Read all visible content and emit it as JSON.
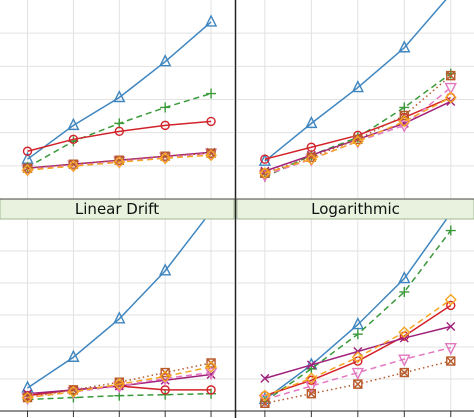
{
  "chart_data": [
    {
      "type": "line",
      "title": "",
      "x": [
        1,
        2,
        3,
        4,
        5
      ],
      "xlim": [
        0.4,
        5.5
      ],
      "ylim": [
        0,
        10
      ],
      "grid": true,
      "series": [
        {
          "marker": "triangle",
          "color": "#3f86c0",
          "dash": "solid",
          "values": [
            2.0,
            3.7,
            5.1,
            6.9,
            8.9
          ]
        },
        {
          "marker": "plus",
          "color": "#3a9a3a",
          "dash": "dashed",
          "values": [
            1.6,
            2.9,
            3.8,
            4.6,
            5.3
          ]
        },
        {
          "marker": "circle",
          "color": "#d2232a",
          "dash": "solid",
          "values": [
            2.4,
            3.0,
            3.4,
            3.7,
            3.9
          ]
        },
        {
          "marker": "xmark",
          "color": "#a0207a",
          "dash": "solid",
          "values": [
            1.55,
            1.75,
            1.95,
            2.15,
            2.35
          ]
        },
        {
          "marker": "tridown",
          "color": "#e377c2",
          "dash": "dashed",
          "values": [
            1.5,
            1.7,
            1.9,
            2.1,
            2.3
          ]
        },
        {
          "marker": "boxx",
          "color": "#b85a2a",
          "dash": "dotted",
          "values": [
            1.55,
            1.75,
            1.95,
            2.15,
            2.3
          ]
        },
        {
          "marker": "diamond",
          "color": "#f5a623",
          "dash": "dashed",
          "values": [
            1.45,
            1.65,
            1.85,
            2.05,
            2.2
          ]
        }
      ]
    },
    {
      "type": "line",
      "title": "",
      "x": [
        1,
        2,
        3,
        4,
        5
      ],
      "xlim": [
        0.4,
        5.5
      ],
      "ylim": [
        0,
        10
      ],
      "grid": true,
      "series": [
        {
          "marker": "triangle",
          "color": "#3f86c0",
          "dash": "solid",
          "values": [
            1.9,
            3.8,
            5.6,
            7.6,
            10.3
          ]
        },
        {
          "marker": "plus",
          "color": "#3a9a3a",
          "dash": "dashed",
          "values": [
            1.1,
            2.2,
            3.1,
            4.6,
            6.3
          ]
        },
        {
          "marker": "circle",
          "color": "#d2232a",
          "dash": "solid",
          "values": [
            2.0,
            2.6,
            3.2,
            4.1,
            5.1
          ]
        },
        {
          "marker": "xmark",
          "color": "#a0207a",
          "dash": "solid",
          "values": [
            1.4,
            2.2,
            3.0,
            3.8,
            4.9
          ]
        },
        {
          "marker": "tridown",
          "color": "#e377c2",
          "dash": "dashed",
          "values": [
            1.2,
            2.0,
            2.9,
            3.7,
            5.6
          ]
        },
        {
          "marker": "boxx",
          "color": "#b85a2a",
          "dash": "dotted",
          "values": [
            1.3,
            2.1,
            3.0,
            4.2,
            6.2
          ]
        },
        {
          "marker": "diamond",
          "color": "#f5a623",
          "dash": "dashed",
          "values": [
            1.3,
            2.0,
            2.9,
            3.9,
            5.1
          ]
        }
      ]
    },
    {
      "type": "line",
      "title": "Linear Drift",
      "x": [
        1,
        2,
        3,
        4,
        5
      ],
      "xlim": [
        0.4,
        5.5
      ],
      "ylim": [
        0,
        10
      ],
      "grid": true,
      "series": [
        {
          "marker": "triangle",
          "color": "#3f86c0",
          "dash": "solid",
          "values": [
            1.2,
            2.8,
            4.8,
            7.3,
            10.4
          ]
        },
        {
          "marker": "plus",
          "color": "#3a9a3a",
          "dash": "dashed",
          "values": [
            0.6,
            0.7,
            0.8,
            0.85,
            0.9
          ]
        },
        {
          "marker": "circle",
          "color": "#d2232a",
          "dash": "solid",
          "values": [
            0.8,
            1.1,
            1.3,
            1.1,
            1.1
          ]
        },
        {
          "marker": "xmark",
          "color": "#a0207a",
          "dash": "solid",
          "values": [
            0.9,
            1.1,
            1.3,
            1.6,
            1.9
          ]
        },
        {
          "marker": "tridown",
          "color": "#e377c2",
          "dash": "dashed",
          "values": [
            0.7,
            1.0,
            1.3,
            1.7,
            2.0
          ]
        },
        {
          "marker": "boxx",
          "color": "#b85a2a",
          "dash": "dotted",
          "values": [
            0.7,
            1.1,
            1.5,
            2.0,
            2.5
          ]
        },
        {
          "marker": "diamond",
          "color": "#f5a623",
          "dash": "dashed",
          "values": [
            0.7,
            1.0,
            1.4,
            1.8,
            2.3
          ]
        }
      ]
    },
    {
      "type": "line",
      "title": "Logarithmic",
      "x": [
        1,
        2,
        3,
        4,
        5
      ],
      "xlim": [
        0.4,
        5.5
      ],
      "ylim": [
        0,
        10
      ],
      "grid": true,
      "series": [
        {
          "marker": "triangle",
          "color": "#3f86c0",
          "dash": "solid",
          "values": [
            0.6,
            2.4,
            4.5,
            6.9,
            10.3
          ]
        },
        {
          "marker": "plus",
          "color": "#3a9a3a",
          "dash": "dashed",
          "values": [
            0.5,
            2.2,
            4.0,
            6.2,
            9.4
          ]
        },
        {
          "marker": "circle",
          "color": "#d2232a",
          "dash": "solid",
          "values": [
            0.8,
            1.6,
            2.6,
            3.9,
            5.5
          ]
        },
        {
          "marker": "xmark",
          "color": "#a0207a",
          "dash": "solid",
          "values": [
            1.7,
            2.4,
            3.1,
            3.8,
            4.4
          ]
        },
        {
          "marker": "tridown",
          "color": "#e377c2",
          "dash": "dashed",
          "values": [
            0.6,
            1.3,
            2.0,
            2.7,
            3.3
          ]
        },
        {
          "marker": "boxx",
          "color": "#b85a2a",
          "dash": "dotted",
          "values": [
            0.4,
            0.9,
            1.4,
            2.0,
            2.6
          ]
        },
        {
          "marker": "diamond",
          "color": "#f5a623",
          "dash": "dashed",
          "values": [
            0.8,
            1.7,
            2.8,
            4.1,
            5.8
          ]
        }
      ]
    }
  ]
}
